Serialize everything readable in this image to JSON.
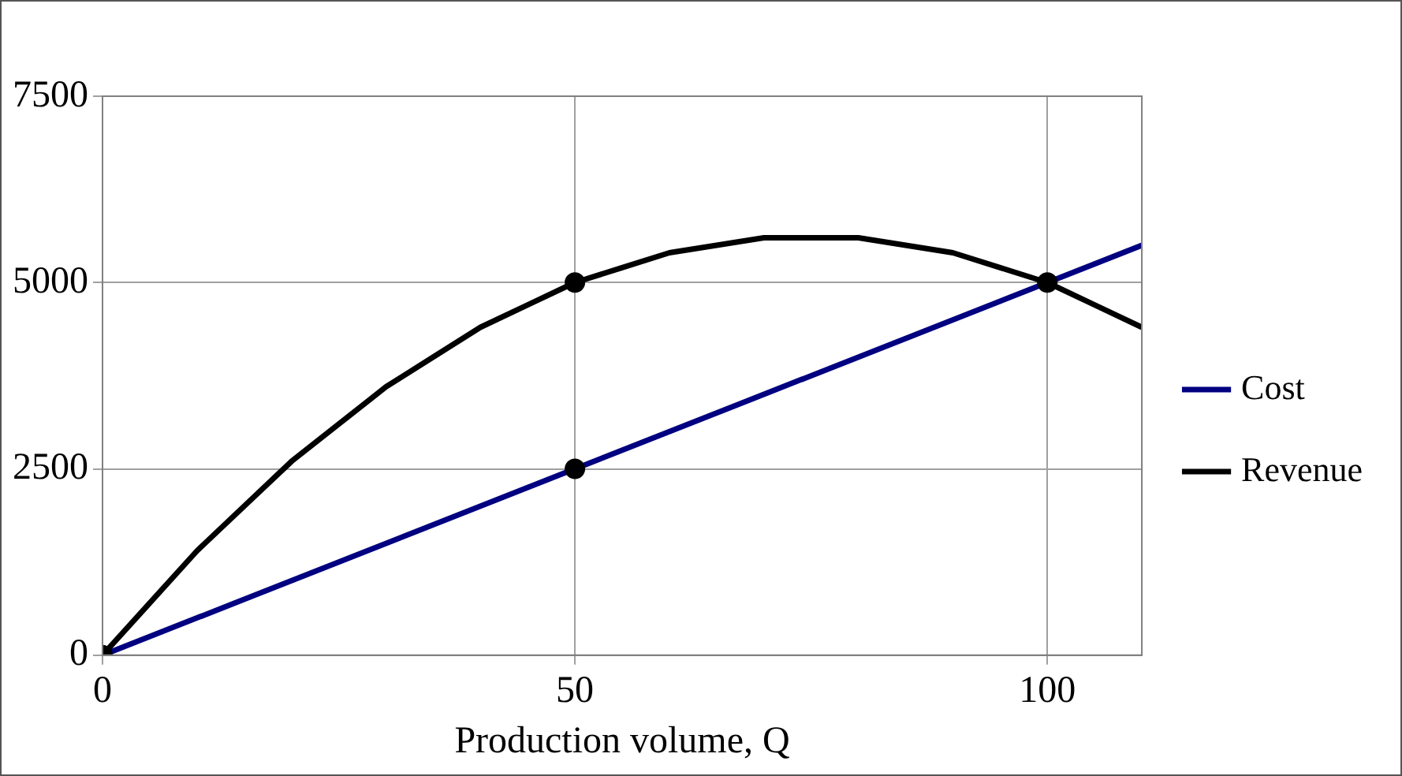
{
  "chart_data": {
    "type": "line",
    "xlabel": "Production volume, Q",
    "xlim": [
      0,
      110
    ],
    "xticks": [
      0,
      50,
      100
    ],
    "ylim": [
      0,
      7500
    ],
    "yticks": [
      0,
      2500,
      5000,
      7500
    ],
    "grid": true,
    "legend": "right",
    "series": [
      {
        "name": "Cost",
        "marker": "none",
        "color": "#000080",
        "x": [
          0,
          110
        ],
        "values": [
          0,
          5500
        ]
      },
      {
        "name": "Revenue",
        "marker": "none",
        "color": "#000000",
        "x": [
          0,
          5,
          10,
          15,
          20,
          25,
          30,
          35,
          40,
          45,
          50,
          55,
          60,
          65,
          70,
          75,
          80,
          85,
          90,
          95,
          100,
          105,
          110
        ],
        "values": [
          0,
          700,
          1400,
          2000,
          2600,
          3100,
          3600,
          4000,
          4400,
          4700,
          5000,
          5200,
          5400,
          5500,
          5600,
          5600,
          5600,
          5500,
          5400,
          5200,
          5000,
          4700,
          4400
        ]
      },
      {
        "type": "scatter",
        "marker": "circle",
        "color": "#000000",
        "x": [
          0,
          50,
          50,
          100
        ],
        "values": [
          0,
          2500,
          5000,
          5000
        ]
      }
    ]
  }
}
